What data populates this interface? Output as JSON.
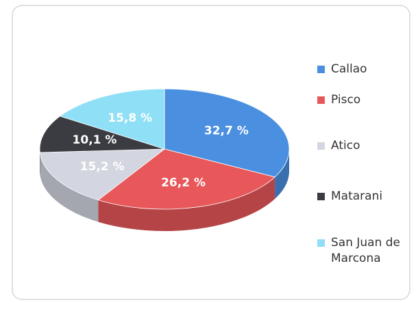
{
  "chart_data": {
    "type": "pie",
    "three_d": true,
    "categories": [
      "Callao",
      "Pisco",
      "Atico",
      "Matarani",
      "San Juan de Marcona"
    ],
    "values": [
      32.7,
      26.2,
      15.2,
      10.1,
      15.8
    ],
    "value_labels": [
      "32,7 %",
      "26,2 %",
      "15,2 %",
      "10,1 %",
      "15,8 %"
    ],
    "colors": [
      "#4a8fe0",
      "#e8585a",
      "#d3d6e0",
      "#3b3c42",
      "#8fe0f6"
    ],
    "legend": "right"
  }
}
